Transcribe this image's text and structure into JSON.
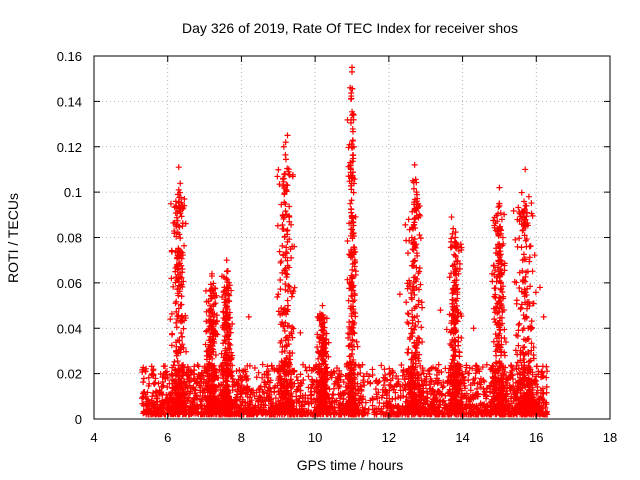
{
  "chart_data": {
    "type": "scatter",
    "title": "Day 326 of 2019, Rate Of TEC Index for receiver shos",
    "xlabel": "GPS time / hours",
    "ylabel": "ROTI / TECUs",
    "xlim": [
      4,
      18
    ],
    "ylim": [
      0,
      0.16
    ],
    "xticks": [
      "4",
      "6",
      "8",
      "10",
      "12",
      "14",
      "16",
      "18"
    ],
    "yticks": [
      "0",
      "0.02",
      "0.04",
      "0.06",
      "0.08",
      "0.1",
      "0.12",
      "0.14",
      "0.16"
    ],
    "grid": true,
    "marker": "+",
    "color": "#ff0000",
    "data_range_x": [
      5.3,
      16.3
    ],
    "clusters": [
      {
        "x_center": 6.3,
        "x_spread": 0.15,
        "peak_y": 0.111
      },
      {
        "x_center": 7.2,
        "x_spread": 0.12,
        "peak_y": 0.064
      },
      {
        "x_center": 7.6,
        "x_spread": 0.1,
        "peak_y": 0.07
      },
      {
        "x_center": 9.2,
        "x_spread": 0.15,
        "peak_y": 0.125
      },
      {
        "x_center": 10.2,
        "x_spread": 0.1,
        "peak_y": 0.05
      },
      {
        "x_center": 11.0,
        "x_spread": 0.08,
        "peak_y": 0.155
      },
      {
        "x_center": 12.7,
        "x_spread": 0.15,
        "peak_y": 0.112
      },
      {
        "x_center": 13.8,
        "x_spread": 0.12,
        "peak_y": 0.089
      },
      {
        "x_center": 15.0,
        "x_spread": 0.12,
        "peak_y": 0.102
      },
      {
        "x_center": 15.7,
        "x_spread": 0.2,
        "peak_y": 0.11
      }
    ],
    "sample_points": [
      [
        11.0,
        0.155
      ],
      [
        11.0,
        0.153
      ],
      [
        10.95,
        0.146
      ],
      [
        11.05,
        0.12
      ],
      [
        10.95,
        0.113
      ],
      [
        9.25,
        0.125
      ],
      [
        9.2,
        0.122
      ],
      [
        9.15,
        0.12
      ],
      [
        9.25,
        0.103
      ],
      [
        9.3,
        0.089
      ],
      [
        6.3,
        0.111
      ],
      [
        6.3,
        0.101
      ],
      [
        6.25,
        0.093
      ],
      [
        6.45,
        0.094
      ],
      [
        6.4,
        0.085
      ],
      [
        12.7,
        0.112
      ],
      [
        12.65,
        0.105
      ],
      [
        12.75,
        0.1
      ],
      [
        12.7,
        0.092
      ],
      [
        15.7,
        0.11
      ],
      [
        15.8,
        0.098
      ],
      [
        15.75,
        0.091
      ],
      [
        15.0,
        0.102
      ],
      [
        15.0,
        0.095
      ],
      [
        13.7,
        0.089
      ],
      [
        13.8,
        0.08
      ],
      [
        7.2,
        0.064
      ],
      [
        7.2,
        0.063
      ],
      [
        7.6,
        0.07
      ],
      [
        6.1,
        0.062
      ],
      [
        8.2,
        0.045
      ],
      [
        9.0,
        0.055
      ],
      [
        9.6,
        0.038
      ],
      [
        10.2,
        0.05
      ],
      [
        12.3,
        0.055
      ],
      [
        13.4,
        0.048
      ],
      [
        14.3,
        0.04
      ],
      [
        14.8,
        0.064
      ],
      [
        16.1,
        0.058
      ],
      [
        16.2,
        0.045
      ],
      [
        12.1,
        0.018
      ],
      [
        11.5,
        0.016
      ]
    ]
  }
}
